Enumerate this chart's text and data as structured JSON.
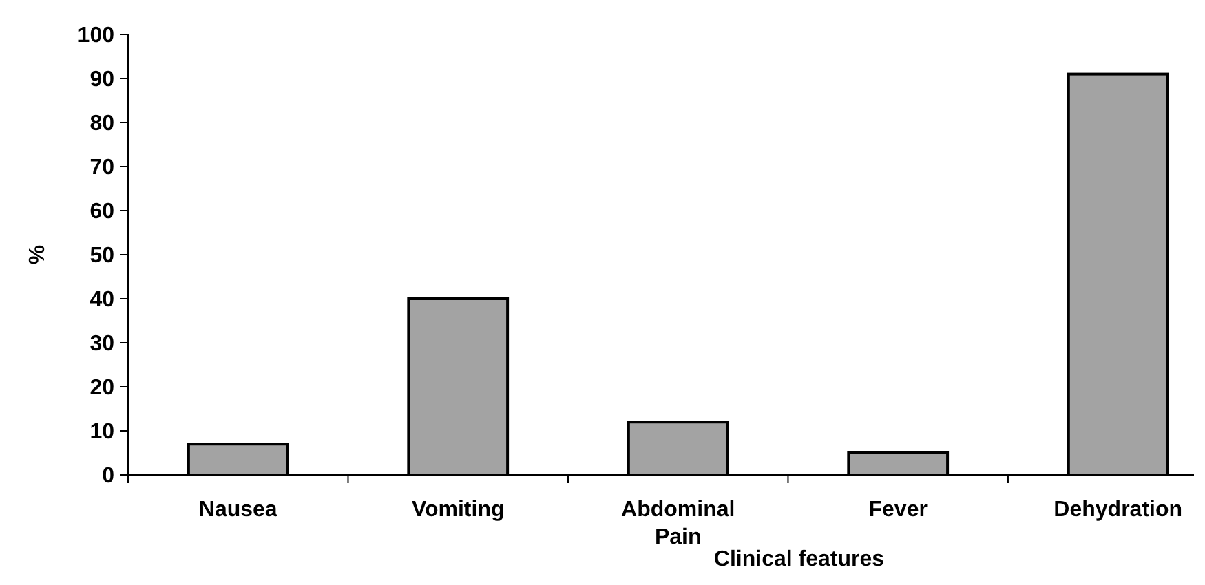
{
  "chart_data": {
    "type": "bar",
    "xlabel": "Clinical features",
    "ylabel": "%",
    "categories": [
      "Nausea",
      "Vomiting",
      "Abdominal Pain",
      "Fever",
      "Dehydration"
    ],
    "values": [
      7,
      40,
      12,
      5,
      91
    ],
    "color": "#a3a3a3",
    "ylim": [
      0,
      100
    ],
    "yticks": [
      0,
      10,
      20,
      30,
      40,
      50,
      60,
      70,
      80,
      90,
      100
    ],
    "grid": false
  }
}
